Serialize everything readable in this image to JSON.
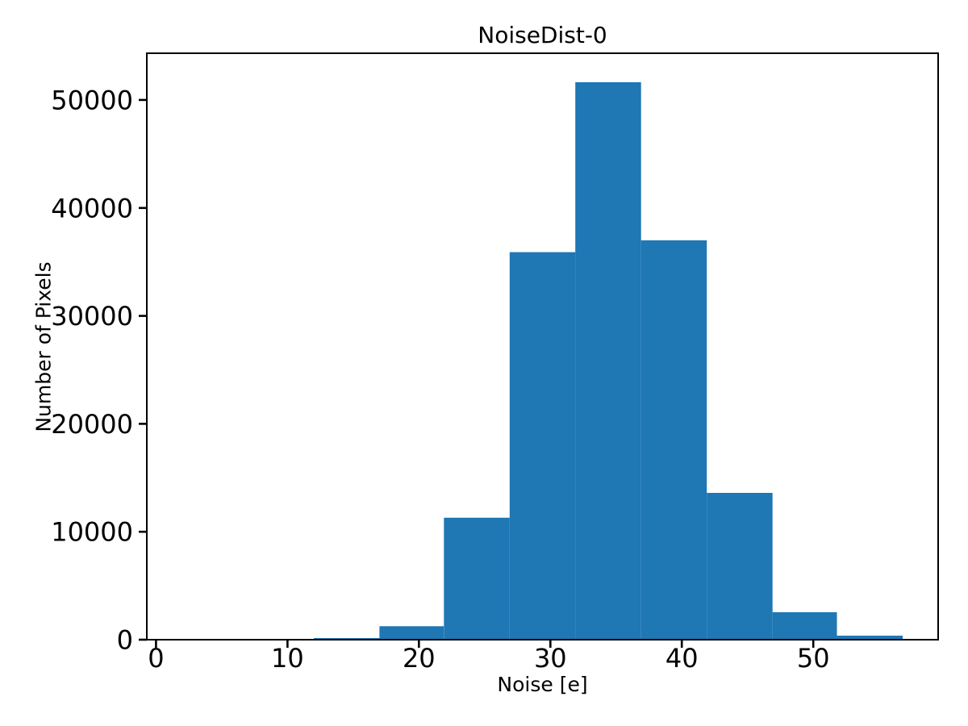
{
  "chart_data": {
    "type": "bar",
    "subtype": "histogram",
    "title": "NoiseDist-0",
    "xlabel": "Noise [e]",
    "ylabel": "Number of Pixels",
    "bin_edges": [
      12.0,
      17.0,
      21.9,
      26.9,
      31.9,
      36.9,
      41.9,
      46.9,
      51.8,
      56.8
    ],
    "counts": [
      150,
      1250,
      11300,
      35900,
      51650,
      37000,
      13600,
      2550,
      370
    ],
    "bar_color": "#1f77b4",
    "spine_color": "#000000",
    "background_color": "#ffffff",
    "xlim": [
      -0.7,
      59.5
    ],
    "ylim": [
      0,
      54330
    ],
    "x_ticks": [
      0,
      10,
      20,
      30,
      40,
      50
    ],
    "y_ticks": [
      0,
      10000,
      20000,
      30000,
      40000,
      50000
    ],
    "grid": false,
    "legend": null
  }
}
